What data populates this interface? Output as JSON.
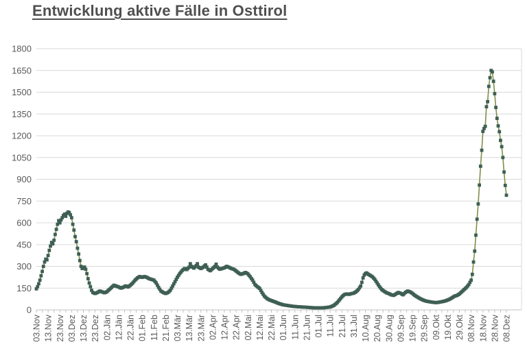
{
  "header": {
    "title": "Entwicklung aktive Fälle in Osttirol"
  },
  "chart_data": {
    "type": "line",
    "title": "Entwicklung aktive Fälle in Osttirol",
    "legend_position": "none",
    "grid": "horizontal",
    "marker": "square",
    "marker_every_days": 1,
    "colors": {
      "line": "#7d8f4b",
      "marker": "#3e5f54",
      "gridline": "#d9d9d9",
      "axis": "#c0c0c0",
      "tick_text": "#595959",
      "title_text": "#4f4f4f"
    },
    "y_axis": {
      "min": 0,
      "max": 1800,
      "ticks": [
        0,
        150,
        300,
        450,
        600,
        750,
        900,
        1050,
        1200,
        1350,
        1500,
        1650,
        1800
      ]
    },
    "x_axis": {
      "days_per_label": 10,
      "total_days": 400,
      "minor_tick_every_days": 5,
      "tick_labels": [
        "03.Nov",
        "13.Nov",
        "23.Nov",
        "03.Dez",
        "13.Dez",
        "23.Dez",
        "02.Jän",
        "12.Jän",
        "22.Jän",
        "01.Feb",
        "11.Feb",
        "21.Feb",
        "03.Mär",
        "13.Mär",
        "23.Mär",
        "02.Apr",
        "12.Apr",
        "22.Apr",
        "02.Mai",
        "12.Mai",
        "22.Mai",
        "01.Jun",
        "11.Jun",
        "21.Jun",
        "01.Jul",
        "11.Jul",
        "21.Jul",
        "31.Jul",
        "10.Aug",
        "20.Aug",
        "30.Aug",
        "09.Sep",
        "19.Sep",
        "29.Sep",
        "09.Okt",
        "19.Okt",
        "29.Okt",
        "08.Nov",
        "18.Nov",
        "28.Nov",
        "08.Dez"
      ],
      "first_label": "03.Nov",
      "last_label": "08.Dez"
    },
    "points_day_value": [
      [
        0,
        145
      ],
      [
        1,
        160
      ],
      [
        2,
        180
      ],
      [
        3,
        205
      ],
      [
        4,
        235
      ],
      [
        5,
        265
      ],
      [
        6,
        300
      ],
      [
        7,
        330
      ],
      [
        8,
        350
      ],
      [
        9,
        345
      ],
      [
        10,
        375
      ],
      [
        11,
        410
      ],
      [
        12,
        440
      ],
      [
        13,
        465
      ],
      [
        14,
        455
      ],
      [
        15,
        480
      ],
      [
        16,
        520
      ],
      [
        17,
        555
      ],
      [
        18,
        590
      ],
      [
        19,
        615
      ],
      [
        20,
        600
      ],
      [
        21,
        620
      ],
      [
        22,
        635
      ],
      [
        23,
        650
      ],
      [
        24,
        660
      ],
      [
        25,
        645
      ],
      [
        26,
        665
      ],
      [
        27,
        675
      ],
      [
        28,
        670
      ],
      [
        29,
        655
      ],
      [
        30,
        635
      ],
      [
        31,
        590
      ],
      [
        32,
        550
      ],
      [
        33,
        505
      ],
      [
        34,
        470
      ],
      [
        35,
        425
      ],
      [
        36,
        385
      ],
      [
        37,
        340
      ],
      [
        38,
        300
      ],
      [
        39,
        285
      ],
      [
        40,
        290
      ],
      [
        41,
        295
      ],
      [
        42,
        280
      ],
      [
        43,
        250
      ],
      [
        44,
        215
      ],
      [
        45,
        185
      ],
      [
        46,
        160
      ],
      [
        47,
        135
      ],
      [
        48,
        120
      ],
      [
        50,
        113
      ],
      [
        52,
        120
      ],
      [
        54,
        130
      ],
      [
        56,
        124
      ],
      [
        58,
        118
      ],
      [
        60,
        125
      ],
      [
        62,
        140
      ],
      [
        64,
        155
      ],
      [
        66,
        170
      ],
      [
        68,
        164
      ],
      [
        70,
        158
      ],
      [
        72,
        150
      ],
      [
        74,
        156
      ],
      [
        76,
        165
      ],
      [
        78,
        158
      ],
      [
        80,
        170
      ],
      [
        82,
        185
      ],
      [
        84,
        205
      ],
      [
        86,
        220
      ],
      [
        88,
        230
      ],
      [
        90,
        224
      ],
      [
        92,
        230
      ],
      [
        94,
        224
      ],
      [
        96,
        215
      ],
      [
        98,
        210
      ],
      [
        100,
        205
      ],
      [
        102,
        185
      ],
      [
        104,
        155
      ],
      [
        106,
        130
      ],
      [
        108,
        120
      ],
      [
        110,
        113
      ],
      [
        112,
        120
      ],
      [
        114,
        135
      ],
      [
        116,
        165
      ],
      [
        118,
        195
      ],
      [
        120,
        225
      ],
      [
        122,
        250
      ],
      [
        124,
        270
      ],
      [
        126,
        285
      ],
      [
        128,
        278
      ],
      [
        130,
        295
      ],
      [
        131,
        318
      ],
      [
        132,
        300
      ],
      [
        134,
        288
      ],
      [
        136,
        305
      ],
      [
        137,
        318
      ],
      [
        138,
        295
      ],
      [
        140,
        285
      ],
      [
        142,
        295
      ],
      [
        144,
        310
      ],
      [
        145,
        295
      ],
      [
        146,
        280
      ],
      [
        148,
        270
      ],
      [
        150,
        285
      ],
      [
        152,
        300
      ],
      [
        153,
        315
      ],
      [
        154,
        295
      ],
      [
        156,
        280
      ],
      [
        158,
        285
      ],
      [
        160,
        290
      ],
      [
        162,
        300
      ],
      [
        164,
        293
      ],
      [
        166,
        285
      ],
      [
        168,
        280
      ],
      [
        170,
        268
      ],
      [
        172,
        255
      ],
      [
        174,
        245
      ],
      [
        176,
        250
      ],
      [
        178,
        258
      ],
      [
        180,
        248
      ],
      [
        182,
        228
      ],
      [
        184,
        205
      ],
      [
        186,
        175
      ],
      [
        188,
        160
      ],
      [
        190,
        148
      ],
      [
        192,
        120
      ],
      [
        194,
        95
      ],
      [
        196,
        80
      ],
      [
        198,
        70
      ],
      [
        200,
        64
      ],
      [
        202,
        58
      ],
      [
        204,
        52
      ],
      [
        206,
        45
      ],
      [
        208,
        40
      ],
      [
        210,
        35
      ],
      [
        214,
        30
      ],
      [
        218,
        25
      ],
      [
        222,
        22
      ],
      [
        226,
        20
      ],
      [
        230,
        18
      ],
      [
        235,
        15
      ],
      [
        240,
        14
      ],
      [
        245,
        15
      ],
      [
        250,
        20
      ],
      [
        253,
        30
      ],
      [
        256,
        50
      ],
      [
        258,
        70
      ],
      [
        260,
        90
      ],
      [
        262,
        105
      ],
      [
        264,
        110
      ],
      [
        266,
        107
      ],
      [
        268,
        112
      ],
      [
        270,
        115
      ],
      [
        272,
        125
      ],
      [
        274,
        140
      ],
      [
        276,
        165
      ],
      [
        277,
        190
      ],
      [
        278,
        220
      ],
      [
        279,
        240
      ],
      [
        280,
        250
      ],
      [
        281,
        255
      ],
      [
        282,
        248
      ],
      [
        284,
        238
      ],
      [
        286,
        228
      ],
      [
        288,
        210
      ],
      [
        290,
        185
      ],
      [
        292,
        160
      ],
      [
        294,
        140
      ],
      [
        296,
        128
      ],
      [
        298,
        118
      ],
      [
        300,
        112
      ],
      [
        302,
        104
      ],
      [
        304,
        100
      ],
      [
        306,
        110
      ],
      [
        308,
        120
      ],
      [
        310,
        114
      ],
      [
        312,
        104
      ],
      [
        314,
        120
      ],
      [
        316,
        130
      ],
      [
        318,
        124
      ],
      [
        320,
        114
      ],
      [
        322,
        100
      ],
      [
        324,
        90
      ],
      [
        326,
        80
      ],
      [
        328,
        72
      ],
      [
        330,
        65
      ],
      [
        332,
        60
      ],
      [
        334,
        57
      ],
      [
        336,
        54
      ],
      [
        338,
        52
      ],
      [
        340,
        50
      ],
      [
        342,
        52
      ],
      [
        344,
        55
      ],
      [
        346,
        58
      ],
      [
        348,
        62
      ],
      [
        350,
        68
      ],
      [
        352,
        75
      ],
      [
        354,
        85
      ],
      [
        356,
        95
      ],
      [
        358,
        100
      ],
      [
        360,
        110
      ],
      [
        362,
        125
      ],
      [
        364,
        140
      ],
      [
        366,
        155
      ],
      [
        368,
        175
      ],
      [
        370,
        205
      ],
      [
        371,
        245
      ],
      [
        372,
        330
      ],
      [
        373,
        405
      ],
      [
        374,
        515
      ],
      [
        375,
        625
      ],
      [
        376,
        730
      ],
      [
        377,
        860
      ],
      [
        378,
        990
      ],
      [
        379,
        1100
      ],
      [
        380,
        1230
      ],
      [
        381,
        1250
      ],
      [
        382,
        1265
      ],
      [
        383,
        1400
      ],
      [
        384,
        1435
      ],
      [
        385,
        1540
      ],
      [
        386,
        1600
      ],
      [
        387,
        1650
      ],
      [
        388,
        1640
      ],
      [
        389,
        1575
      ],
      [
        390,
        1490
      ],
      [
        391,
        1395
      ],
      [
        392,
        1320
      ],
      [
        393,
        1268
      ],
      [
        394,
        1228
      ],
      [
        395,
        1168
      ],
      [
        396,
        1125
      ],
      [
        397,
        1050
      ],
      [
        398,
        950
      ],
      [
        399,
        858
      ],
      [
        400,
        790
      ]
    ]
  }
}
